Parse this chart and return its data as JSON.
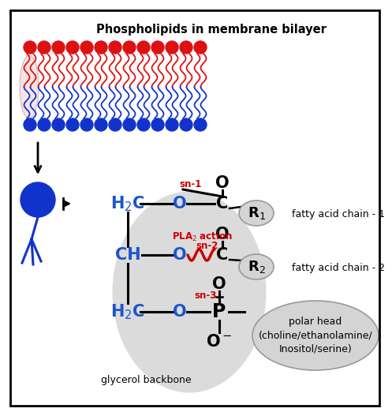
{
  "title": "Phospholipids in membrane bilayer",
  "background_color": "#ffffff",
  "blue": "#1a55cc",
  "red": "#cc0000",
  "black": "#000000",
  "light_gray": "#d4d4d4",
  "mem_red": "#dd1111",
  "mem_blue": "#1133cc",
  "cell_blue": "#1133cc",
  "glycerol_label": "glycerol backbone",
  "polar_head_label": "polar head\n(choline/ethanolamine/\nInositol/serine)",
  "fatty_acid_1_label": "fatty acid chain - 1",
  "fatty_acid_2_label": "fatty acid chain - 2",
  "sn1_label": "sn-1",
  "sn2_label": "sn-2",
  "sn3_label": "sn-3"
}
